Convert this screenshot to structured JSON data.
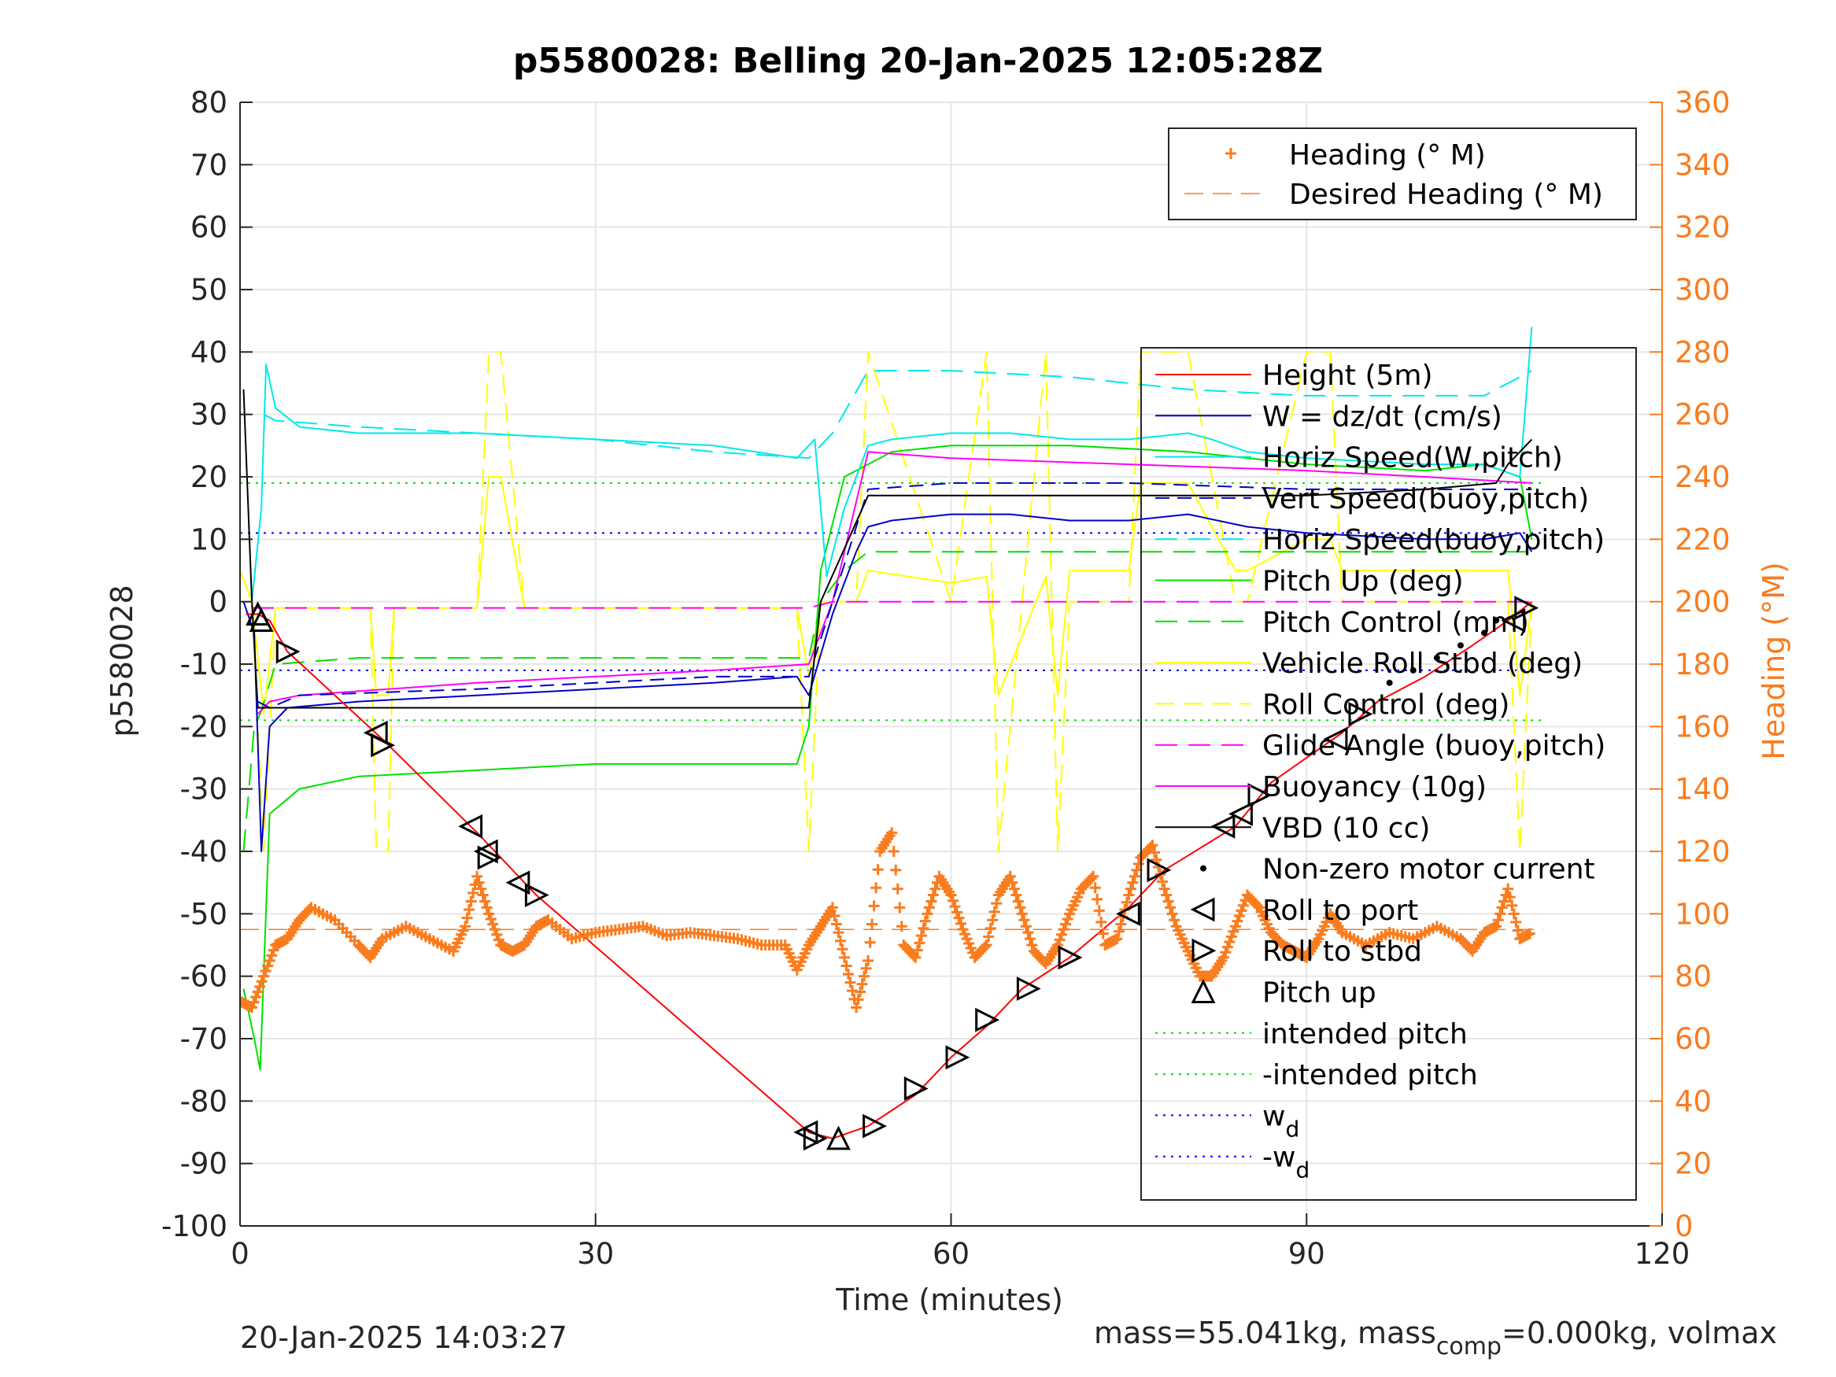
{
  "chart_data": {
    "type": "line",
    "title": "p5580028: Belling 20-Jan-2025 12:05:28Z",
    "xlabel": "Time (minutes)",
    "ylabel": "p5580028",
    "y2label": "Heading (°M)",
    "xlim": [
      0,
      120
    ],
    "ylim": [
      -100,
      80
    ],
    "y2lim": [
      0,
      360
    ],
    "xticks": [
      0,
      30,
      60,
      90,
      120
    ],
    "yticks": [
      80,
      70,
      60,
      50,
      40,
      30,
      20,
      10,
      0,
      -10,
      -20,
      -30,
      -40,
      -50,
      -60,
      -70,
      -80,
      -90,
      -100
    ],
    "y2ticks": [
      360,
      340,
      320,
      300,
      280,
      260,
      240,
      220,
      200,
      180,
      160,
      140,
      120,
      100,
      80,
      60,
      40,
      20,
      0
    ],
    "grid": true,
    "colors": {
      "height": "#ff0000",
      "w": "#0000c8",
      "horiz_w": "#00e8e8",
      "vert_buoy": "#0000c8",
      "horiz_buoy": "#00e8e8",
      "pitch": "#00e000",
      "pitch_control": "#00e000",
      "roll": "#ffff00",
      "roll_control": "#ffff00",
      "glide": "#ff00ff",
      "buoyancy": "#ff00ff",
      "vbd": "#000000",
      "heading": "#f97c1f",
      "intended_pitch": "#00e000",
      "wd": "#0000ff",
      "axis2": "#f97c1f"
    },
    "legend_heading": {
      "placement": "top-right",
      "entries": [
        "Heading (° M)",
        "Desired Heading (° M)"
      ]
    },
    "legend_main": {
      "placement": "right",
      "entries": [
        "Height (5m)",
        "W = dz/dt (cm/s)",
        "Horiz Speed(W,pitch)",
        "Vert Speed(buoy,pitch)",
        "Horiz Speed(buoy,pitch)",
        "Pitch Up (deg)",
        "Pitch Control (mm)",
        "Vehicle Roll Stbd (deg)",
        "Roll Control (deg)",
        "Glide Angle (buoy,pitch)",
        "Buoyancy (10g)",
        "VBD (10 cc)",
        "Non-zero motor current",
        "Roll to port",
        "Roll to stbd",
        "Pitch up",
        "intended pitch",
        "-intended pitch",
        "w",
        "-w"
      ],
      "subscripts": {
        "w": "d",
        "-w": "d"
      }
    },
    "series": [
      {
        "name": "Height (5m)",
        "x": [
          0.5,
          1.5,
          2.5,
          4,
          12,
          20,
          25,
          48,
          50,
          53,
          57,
          60,
          63,
          66,
          70,
          75,
          78,
          84,
          87,
          90,
          93,
          96,
          100,
          104,
          107,
          109
        ],
        "y": [
          -2,
          -2,
          -3,
          -8,
          -22,
          -37,
          -47,
          -85,
          -86,
          -84,
          -79,
          -73,
          -68,
          -62,
          -57,
          -49,
          -43,
          -36,
          -29,
          -25,
          -21,
          -16,
          -12,
          -7,
          -3,
          0
        ]
      },
      {
        "name": "W = dz/dt (cm/s)",
        "x": [
          0.3,
          1.2,
          1.8,
          2.5,
          4,
          10,
          20,
          30,
          40,
          47,
          48,
          50,
          52,
          53,
          55,
          60,
          65,
          70,
          75,
          80,
          85,
          90,
          100,
          105,
          108,
          109
        ],
        "y": [
          0,
          -5,
          -40,
          -20,
          -17,
          -16,
          -15,
          -14,
          -13,
          -12,
          -15,
          -2,
          8,
          12,
          13,
          14,
          14,
          13,
          13,
          14,
          12,
          11,
          10,
          10,
          11,
          8
        ]
      },
      {
        "name": "Horiz Speed(W,pitch)",
        "x": [
          1,
          1.8,
          2.2,
          3,
          5,
          10,
          20,
          30,
          40,
          47,
          48.5,
          49.5,
          51,
          53,
          55,
          60,
          65,
          70,
          75,
          80,
          82,
          85,
          90,
          100,
          105,
          108,
          109
        ],
        "y": [
          0,
          15,
          38,
          31,
          28,
          27,
          27,
          26,
          25,
          23,
          26,
          4,
          15,
          25,
          26,
          27,
          27,
          26,
          26,
          27,
          26,
          24,
          23,
          22,
          22,
          20,
          44
        ]
      },
      {
        "name": "Vert Speed(buoy,pitch)",
        "x": [
          1.5,
          2.5,
          5,
          20,
          40,
          48,
          50,
          53,
          60,
          75,
          90,
          100,
          109
        ],
        "y": [
          -16,
          -17,
          -15,
          -14,
          -12,
          -12,
          0,
          18,
          19,
          19,
          18,
          18,
          18
        ]
      },
      {
        "name": "Horiz Speed(buoy,pitch)",
        "x": [
          2,
          3,
          10,
          20,
          30,
          40,
          48,
          50,
          53,
          60,
          70,
          80,
          90,
          100,
          105,
          109
        ],
        "y": [
          30,
          29,
          28,
          27,
          26,
          24,
          23,
          27,
          37,
          37,
          36,
          34,
          33,
          33,
          33,
          37
        ]
      },
      {
        "name": "Pitch Up (deg)",
        "x": [
          0.3,
          1.2,
          1.7,
          2.5,
          5,
          10,
          20,
          30,
          40,
          47,
          48,
          49,
          51,
          53,
          55,
          60,
          70,
          80,
          90,
          100,
          105,
          108,
          109
        ],
        "y": [
          -62,
          -70,
          -75,
          -34,
          -30,
          -28,
          -27,
          -26,
          -26,
          -26,
          -20,
          5,
          20,
          22,
          24,
          25,
          25,
          24,
          22,
          21,
          22,
          20,
          10
        ]
      },
      {
        "name": "Pitch Control (mm)",
        "x": [
          0.3,
          1.2,
          1.7,
          3,
          10,
          20,
          30,
          40,
          48,
          49,
          51,
          53,
          60,
          70,
          80,
          90,
          100,
          109
        ],
        "y": [
          -40,
          -20,
          -18,
          -10,
          -9,
          -9,
          -9,
          -9,
          -9,
          0,
          5,
          8,
          8,
          8,
          8,
          8,
          8,
          8
        ]
      },
      {
        "name": "Vehicle Roll Stbd (deg)",
        "x": [
          0,
          1,
          2,
          3,
          11,
          11.5,
          12.5,
          13,
          20,
          21,
          22,
          24,
          25,
          30,
          40,
          47,
          48,
          49,
          52,
          53,
          60,
          63,
          64,
          68,
          69,
          70,
          75,
          76,
          80,
          84,
          85,
          90,
          92,
          93,
          95,
          100,
          106,
          107,
          108,
          109
        ],
        "y": [
          5,
          0,
          -18,
          -1,
          -1,
          -15,
          -15,
          -1,
          -1,
          20,
          20,
          -1,
          -1,
          -1,
          -1,
          -1,
          -12,
          0,
          0,
          5,
          3,
          4,
          -15,
          4,
          -15,
          5,
          5,
          19,
          19,
          5,
          5,
          10,
          10,
          5,
          5,
          5,
          5,
          5,
          -15,
          0
        ]
      },
      {
        "name": "Roll Control (deg)",
        "x": [
          0,
          1,
          2,
          3,
          11,
          11.5,
          12.5,
          13,
          20,
          21,
          22,
          24,
          25,
          30,
          40,
          47,
          48,
          49,
          52,
          53,
          60,
          63,
          64,
          68,
          69,
          70,
          75,
          76,
          80,
          84,
          85,
          90,
          92,
          93,
          95,
          100,
          106,
          107,
          108,
          109
        ],
        "y": [
          0,
          0,
          -40,
          -1,
          -1,
          -40,
          -40,
          -1,
          -1,
          40,
          40,
          -1,
          -1,
          -1,
          -1,
          -1,
          -40,
          0,
          0,
          40,
          0,
          40,
          -40,
          40,
          -40,
          0,
          0,
          40,
          40,
          0,
          0,
          40,
          40,
          0,
          0,
          0,
          0,
          0,
          -40,
          0
        ]
      },
      {
        "name": "Glide Angle (buoy,pitch)",
        "x": [
          1,
          10,
          30,
          48,
          50,
          53,
          70,
          90,
          109
        ],
        "y": [
          -1,
          -1,
          -1,
          -1,
          0,
          0,
          0,
          0,
          0
        ]
      },
      {
        "name": "Buoyancy (10g)",
        "x": [
          1.5,
          2.5,
          5,
          20,
          40,
          48,
          50,
          53,
          60,
          75,
          90,
          100,
          109
        ],
        "y": [
          -18,
          -16,
          -15,
          -13,
          -11,
          -10,
          0,
          24,
          23,
          22,
          21,
          20,
          19
        ]
      },
      {
        "name": "VBD (10 cc)",
        "x": [
          0.3,
          1,
          1.5,
          2.5,
          48,
          49,
          53,
          90,
          100,
          106,
          107,
          109
        ],
        "y": [
          34,
          0,
          -17,
          -17,
          -17,
          0,
          17,
          17,
          18,
          19,
          22,
          26
        ]
      },
      {
        "name": "Heading (° M)",
        "axis": "right",
        "x": [
          0,
          1,
          2,
          3,
          4,
          5,
          6,
          8,
          10,
          11,
          12,
          14,
          16,
          18,
          19,
          20,
          21,
          22,
          23,
          24,
          25,
          26,
          28,
          30,
          32,
          34,
          36,
          38,
          40,
          42,
          44,
          46,
          47,
          48,
          49,
          50,
          51,
          52,
          53,
          54,
          55,
          56,
          57,
          58,
          59,
          60,
          61,
          62,
          63,
          64,
          65,
          66,
          67,
          68,
          69,
          70,
          71,
          72,
          73,
          74,
          75,
          76,
          77,
          78,
          79,
          80,
          81,
          82,
          83,
          84,
          85,
          86,
          87,
          88,
          89,
          90,
          91,
          92,
          93,
          95,
          97,
          99,
          101,
          103,
          104,
          105,
          106,
          107,
          108,
          109
        ],
        "y": [
          72,
          70,
          80,
          90,
          92,
          98,
          102,
          98,
          90,
          86,
          92,
          96,
          92,
          88,
          96,
          112,
          100,
          90,
          88,
          90,
          96,
          98,
          92,
          94,
          95,
          96,
          93,
          94,
          93,
          92,
          90,
          90,
          82,
          90,
          96,
          102,
          86,
          70,
          85,
          120,
          126,
          90,
          86,
          100,
          112,
          106,
          95,
          86,
          90,
          106,
          112,
          100,
          88,
          84,
          90,
          100,
          108,
          112,
          90,
          92,
          106,
          118,
          122,
          108,
          96,
          88,
          80,
          80,
          86,
          96,
          106,
          102,
          94,
          90,
          88,
          86,
          92,
          100,
          94,
          90,
          94,
          92,
          96,
          92,
          88,
          94,
          96,
          108,
          92,
          94
        ]
      },
      {
        "name": "Desired Heading (° M)",
        "axis": "right",
        "x": [
          0,
          110
        ],
        "y": [
          95,
          95
        ]
      },
      {
        "name": "intended pitch",
        "x": [
          0,
          110
        ],
        "y": [
          19,
          19
        ]
      },
      {
        "name": "-intended pitch",
        "x": [
          0,
          110
        ],
        "y": [
          -19,
          -19
        ]
      },
      {
        "name": "w_d",
        "x": [
          0,
          110
        ],
        "y": [
          11,
          11
        ]
      },
      {
        "name": "-w_d",
        "x": [
          0,
          110
        ],
        "y": [
          -11,
          -11
        ]
      }
    ],
    "markers": {
      "roll_to_port": {
        "x": [
          11.5,
          19.5,
          20.8,
          23.5,
          47.8,
          75,
          83,
          84.5,
          92.5,
          107.5
        ],
        "y": [
          -21,
          -36,
          -40,
          -45,
          -85,
          -50,
          -36,
          -34,
          -22,
          -3
        ]
      },
      "roll_to_stbd": {
        "x": [
          4,
          12,
          21,
          25,
          48.5,
          53.5,
          57,
          60.5,
          63,
          66.5,
          70,
          77.5,
          86,
          94.5,
          108.5
        ],
        "y": [
          -8,
          -23,
          -41,
          -47,
          -86,
          -84,
          -78,
          -73,
          -67,
          -62,
          -57,
          -43,
          -31,
          -18,
          -1
        ]
      },
      "pitch_up": {
        "x": [
          1.5,
          1.8,
          50.5
        ],
        "y": [
          -2,
          -3,
          -86
        ]
      },
      "motor_current": {
        "x": [
          97,
          99,
          101,
          103,
          105,
          106
        ],
        "y": [
          -13,
          -11,
          -9,
          -7,
          -5,
          -3
        ]
      }
    }
  },
  "footer": {
    "timestamp": "20-Jan-2025 14:03:27",
    "mass_prefix": "mass=55.041kg, mass",
    "mass_sub": "comp",
    "mass_suffix": "=0.000kg, volmax"
  }
}
